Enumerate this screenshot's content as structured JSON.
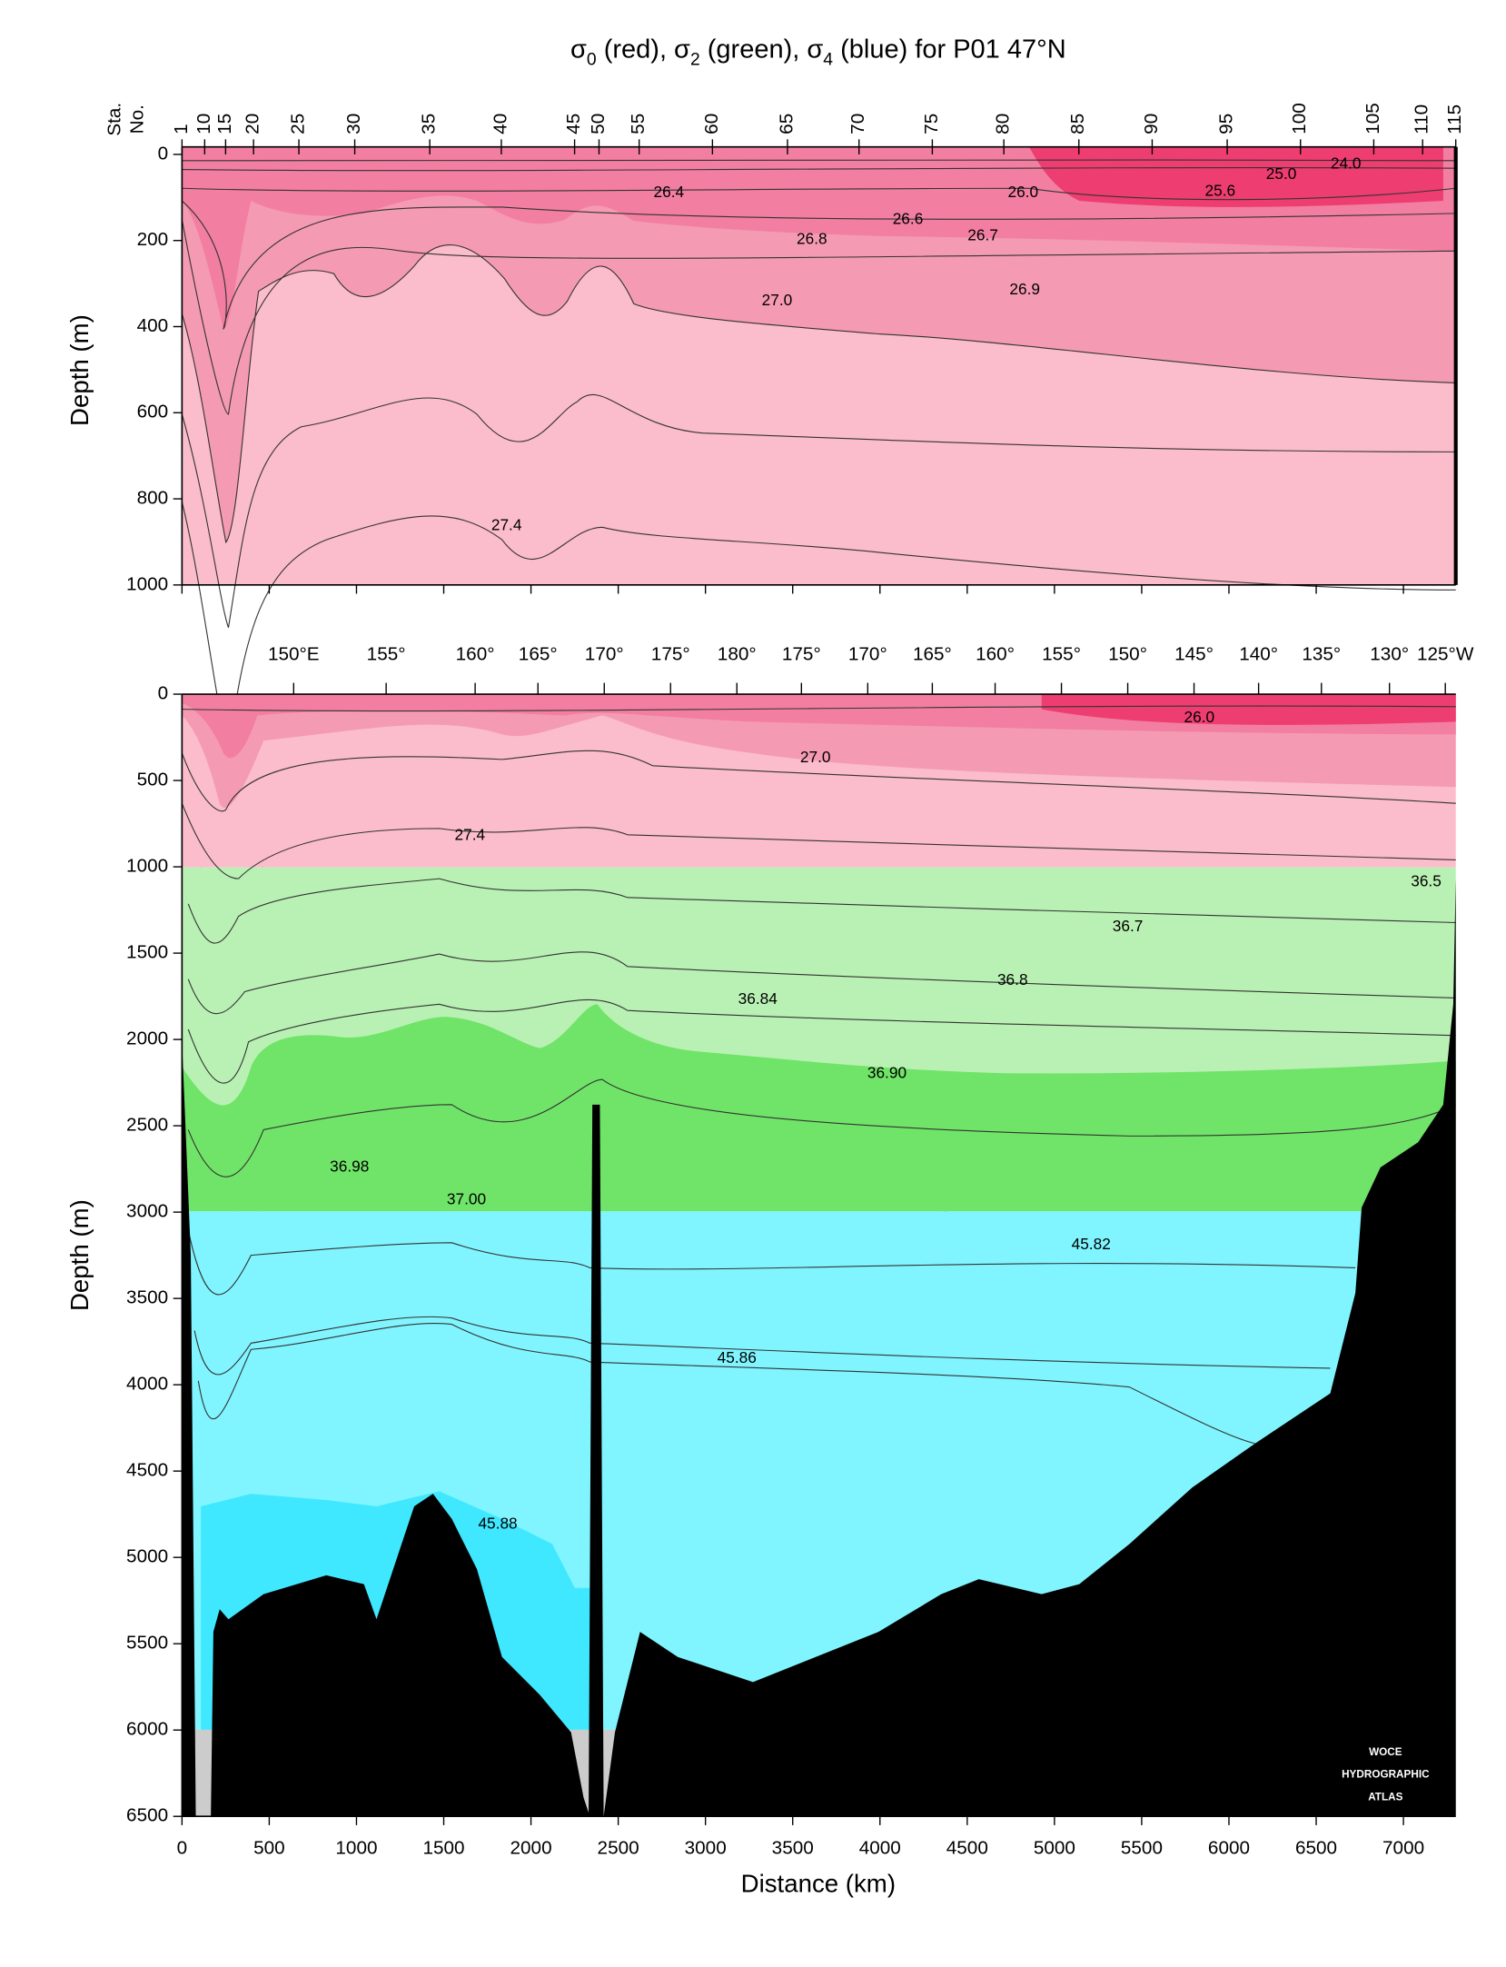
{
  "chart_data": [
    {
      "type": "contour",
      "title": [
        "σ",
        "0",
        " (red), ",
        "σ",
        "2",
        " (green), ",
        "σ",
        "4",
        " (blue) for P01 47°N"
      ],
      "station_axis_label": [
        "Sta.",
        "No."
      ],
      "ylabel": "Depth (m)",
      "xlim": [
        0,
        7300
      ],
      "ylim": [
        0,
        1000
      ],
      "yticks": [
        0,
        200,
        400,
        600,
        800,
        1000
      ],
      "stations": {
        "labels": [
          1,
          10,
          15,
          20,
          25,
          30,
          35,
          40,
          45,
          50,
          55,
          60,
          65,
          70,
          75,
          80,
          85,
          90,
          95,
          100,
          105,
          110,
          115
        ],
        "x": [
          0,
          130,
          250,
          410,
          670,
          990,
          1420,
          1830,
          2250,
          2390,
          2620,
          3040,
          3470,
          3880,
          4300,
          4710,
          5140,
          5560,
          5990,
          6410,
          6830,
          7110,
          7300
        ]
      },
      "contour_labels": [
        {
          "text": "26.4",
          "x": 2790,
          "depth": 90
        },
        {
          "text": "26.0",
          "x": 4820,
          "depth": 90
        },
        {
          "text": "25.6",
          "x": 5950,
          "depth": 87
        },
        {
          "text": "25.0",
          "x": 6300,
          "depth": 47
        },
        {
          "text": "24.0",
          "x": 6670,
          "depth": 23
        },
        {
          "text": "26.6",
          "x": 4160,
          "depth": 152
        },
        {
          "text": "26.7",
          "x": 4590,
          "depth": 190
        },
        {
          "text": "26.8",
          "x": 3610,
          "depth": 198
        },
        {
          "text": "26.9",
          "x": 4830,
          "depth": 315
        },
        {
          "text": "27.0",
          "x": 3410,
          "depth": 341
        },
        {
          "text": "27.4",
          "x": 1860,
          "depth": 863
        }
      ]
    },
    {
      "type": "contour",
      "ylabel": "Depth (m)",
      "xlabel": "Distance (km)",
      "xlim": [
        0,
        7300
      ],
      "ylim": [
        0,
        6500
      ],
      "yticks": [
        0,
        500,
        1000,
        1500,
        2000,
        2500,
        3000,
        3500,
        4000,
        4500,
        5000,
        5500,
        6000,
        6500
      ],
      "xticks": [
        0,
        500,
        1000,
        1500,
        2000,
        2500,
        3000,
        3500,
        4000,
        4500,
        5000,
        5500,
        6000,
        6500,
        7000
      ],
      "longitudes": {
        "labels": [
          "150°E",
          "155°",
          "160°",
          "165°",
          "170°",
          "175°",
          "180°",
          "175°",
          "170°",
          "165°",
          "160°",
          "155°",
          "150°",
          "145°",
          "140°",
          "135°",
          "130°",
          "125°W"
        ],
        "x": [
          640,
          1170,
          1680,
          2040,
          2420,
          2800,
          3180,
          3550,
          3930,
          4300,
          4660,
          5040,
          5420,
          5800,
          6170,
          6530,
          6920,
          7240
        ]
      },
      "contour_labels": [
        {
          "text": "26.0",
          "x": 5830,
          "depth": 140
        },
        {
          "text": "27.0",
          "x": 3630,
          "depth": 370
        },
        {
          "text": "27.4",
          "x": 1650,
          "depth": 820
        },
        {
          "text": "36.5",
          "x": 7130,
          "depth": 1090
        },
        {
          "text": "36.7",
          "x": 5420,
          "depth": 1350
        },
        {
          "text": "36.8",
          "x": 4760,
          "depth": 1660
        },
        {
          "text": "36.84",
          "x": 3300,
          "depth": 1770
        },
        {
          "text": "36.90",
          "x": 4040,
          "depth": 2200
        },
        {
          "text": "36.98",
          "x": 960,
          "depth": 2740
        },
        {
          "text": "37.00",
          "x": 1630,
          "depth": 2930
        },
        {
          "text": "45.82",
          "x": 5210,
          "depth": 3190
        },
        {
          "text": "45.86",
          "x": 3180,
          "depth": 3850
        },
        {
          "text": "45.88",
          "x": 1810,
          "depth": 4810
        }
      ],
      "watermark": [
        "WOCE",
        "HYDROGRAPHIC",
        "ATLAS"
      ]
    }
  ]
}
